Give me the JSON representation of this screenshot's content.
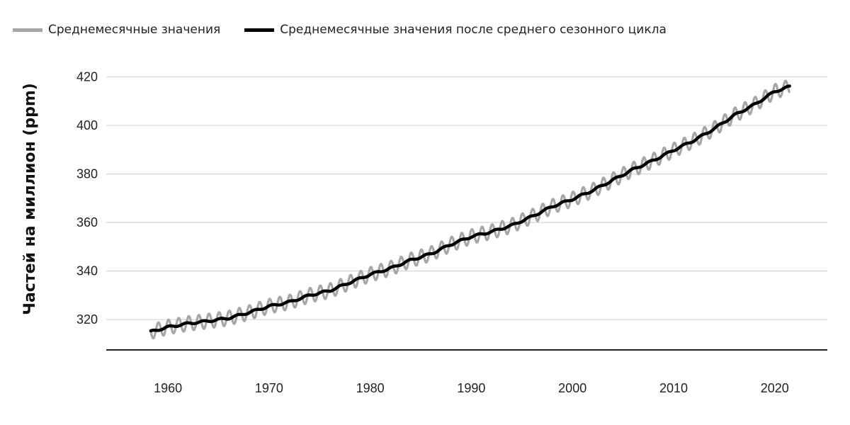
{
  "legend": {
    "items": [
      {
        "label": "Среднемесячные значения",
        "color": "#a6a6a6"
      },
      {
        "label": "Среднемесячные значения после среднего сезонного цикла",
        "color": "#000000"
      }
    ]
  },
  "chart_data": {
    "type": "line",
    "title": "",
    "xlabel": "",
    "ylabel": "Частей на миллион (ppm)",
    "xlim": [
      1953.9,
      2025.2
    ],
    "ylim": [
      307.5,
      426
    ],
    "x_ticks": [
      1960,
      1970,
      1980,
      1990,
      2000,
      2010,
      2020
    ],
    "y_ticks": [
      320,
      340,
      360,
      380,
      400,
      420
    ],
    "grid": "horizontal",
    "legend_position": "top-left",
    "seasonal_amplitude": 3,
    "series": [
      {
        "name": "Среднемесячные значения после среднего сезонного цикла",
        "color": "#000000",
        "x": [
          1958.3,
          1960,
          1962,
          1964,
          1966,
          1968,
          1970,
          1972,
          1974,
          1976,
          1978,
          1980,
          1982,
          1984,
          1986,
          1988,
          1990,
          1992,
          1994,
          1996,
          1998,
          2000,
          2002,
          2004,
          2006,
          2008,
          2010,
          2012,
          2014,
          2016,
          2018,
          2020,
          2021.5
        ],
        "values": [
          315.0,
          316.9,
          318.4,
          319.4,
          320.6,
          322.9,
          325.5,
          327.2,
          330.0,
          331.9,
          335.3,
          338.6,
          341.1,
          344.5,
          347.1,
          351.0,
          354.2,
          356.2,
          358.8,
          362.5,
          366.6,
          369.6,
          373.2,
          377.5,
          381.9,
          385.6,
          389.8,
          393.8,
          398.6,
          404.2,
          408.6,
          414.0,
          416.0
        ]
      }
    ]
  }
}
